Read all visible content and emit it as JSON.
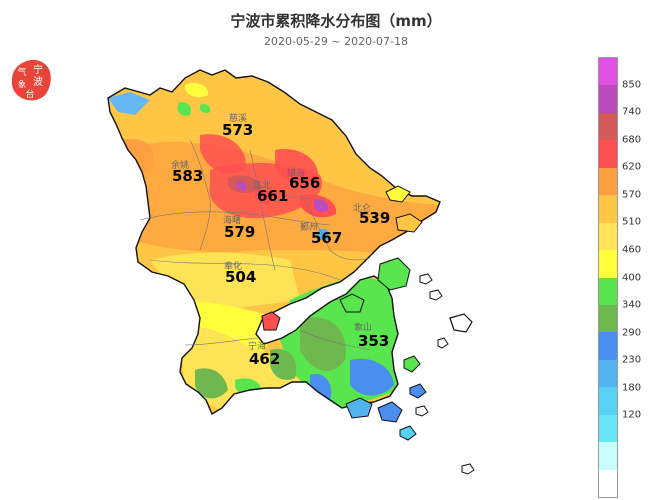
{
  "header": {
    "title": "宁波市累积降水分布图（mm）",
    "date_range": "2020-05-29 ~ 2020-07-18"
  },
  "seal": {
    "lines": [
      "气象",
      "宁波",
      "台"
    ],
    "color": "#e8443a"
  },
  "legend": {
    "colors": [
      "#e250e5",
      "#b94bbf",
      "#d45a5a",
      "#ff5050",
      "#ffa040",
      "#ffc645",
      "#fee356",
      "#ffff3d",
      "#59e54e",
      "#6fb74f",
      "#4a8ef0",
      "#52b5f0",
      "#55d2f6",
      "#66e6f7",
      "#c8fefd",
      "#ffffff"
    ],
    "labels": [
      "850",
      "740",
      "680",
      "620",
      "570",
      "510",
      "460",
      "400",
      "340",
      "290",
      "230",
      "180",
      "120"
    ]
  },
  "values": [
    {
      "id": "v-573",
      "text": "573"
    },
    {
      "id": "v-583",
      "text": "583"
    },
    {
      "id": "v-656",
      "text": "656"
    },
    {
      "id": "v-661",
      "text": "661"
    },
    {
      "id": "v-539",
      "text": "539"
    },
    {
      "id": "v-579",
      "text": "579"
    },
    {
      "id": "v-567",
      "text": "567"
    },
    {
      "id": "v-504",
      "text": "504"
    },
    {
      "id": "v-353",
      "text": "353"
    },
    {
      "id": "v-462",
      "text": "462"
    }
  ],
  "district_names": [
    {
      "id": "d-cixi",
      "text": "慈溪"
    },
    {
      "id": "d-yuyao",
      "text": "余姚"
    },
    {
      "id": "d-zhenhai",
      "text": "镇海"
    },
    {
      "id": "d-jiangbei",
      "text": "江北"
    },
    {
      "id": "d-haishu",
      "text": "海曙"
    },
    {
      "id": "d-beilun",
      "text": "北仑"
    },
    {
      "id": "d-yinzhou",
      "text": "鄞州"
    },
    {
      "id": "d-fenghua",
      "text": "奉化"
    },
    {
      "id": "d-xiangshan",
      "text": "象山"
    },
    {
      "id": "d-ninghai",
      "text": "宁海"
    }
  ]
}
